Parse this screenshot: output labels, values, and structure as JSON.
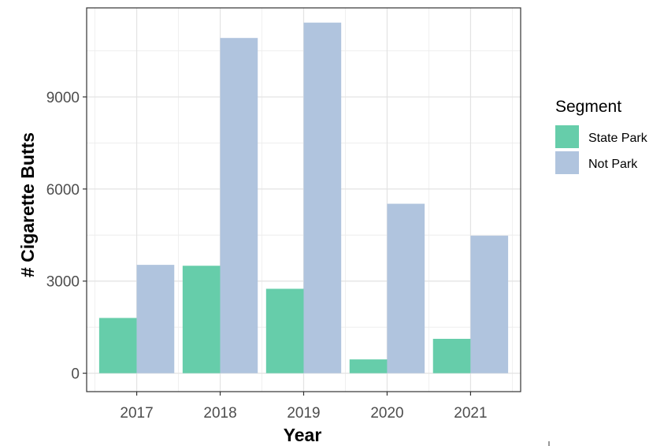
{
  "chart_data": {
    "type": "bar",
    "xlabel": "Year",
    "ylabel": "# Cigarette Butts",
    "categories": [
      "2017",
      "2018",
      "2019",
      "2020",
      "2021"
    ],
    "series": [
      {
        "name": "State Park",
        "color": "#66cdaa",
        "values": [
          1800,
          3500,
          2750,
          450,
          1120
        ]
      },
      {
        "name": "Not Park",
        "color": "#b0c4de",
        "values": [
          3530,
          10920,
          11420,
          5520,
          4480
        ]
      }
    ],
    "ylim": [
      -600,
      11900
    ],
    "yticks": [
      0,
      3000,
      6000,
      9000
    ],
    "grid": true,
    "legend": {
      "title": "Segment",
      "position": "right"
    }
  }
}
